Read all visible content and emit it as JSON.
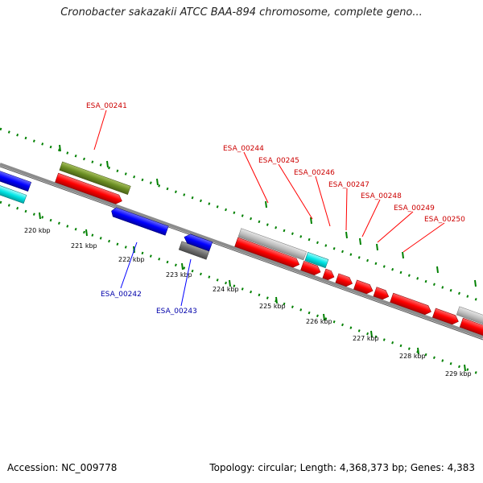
{
  "title": "Cronobacter sakazakii ATCC BAA-894 chromosome, complete geno...",
  "footer": {
    "accession": "Accession: NC_009778",
    "summary": "Topology: circular; Length: 4,368,373 bp; Genes: 4,383"
  },
  "ticks": [
    "220 kbp",
    "221 kbp",
    "222 kbp",
    "223 kbp",
    "224 kbp",
    "225 kbp",
    "226 kbp",
    "227 kbp",
    "228 kbp",
    "229 kbp"
  ],
  "labels": {
    "forward": [
      "ESA_00241",
      "ESA_00244",
      "ESA_00245",
      "ESA_00246",
      "ESA_00247",
      "ESA_00248",
      "ESA_00249",
      "ESA_00250"
    ],
    "reverse": [
      "ESA_00242",
      "ESA_00243"
    ]
  },
  "colors": {
    "forward_cds": "#ff0000",
    "reverse_cds": "#0000ff",
    "forward_label": "#cc0000",
    "reverse_label": "#0000aa",
    "gene_olive": "#6b8e23",
    "gene_gray": "#c0c0c0",
    "gene_dark_gray": "#707070",
    "gene_cyan": "#00e5e5",
    "backbone": "#808080",
    "dotted_ring": "#008000"
  }
}
